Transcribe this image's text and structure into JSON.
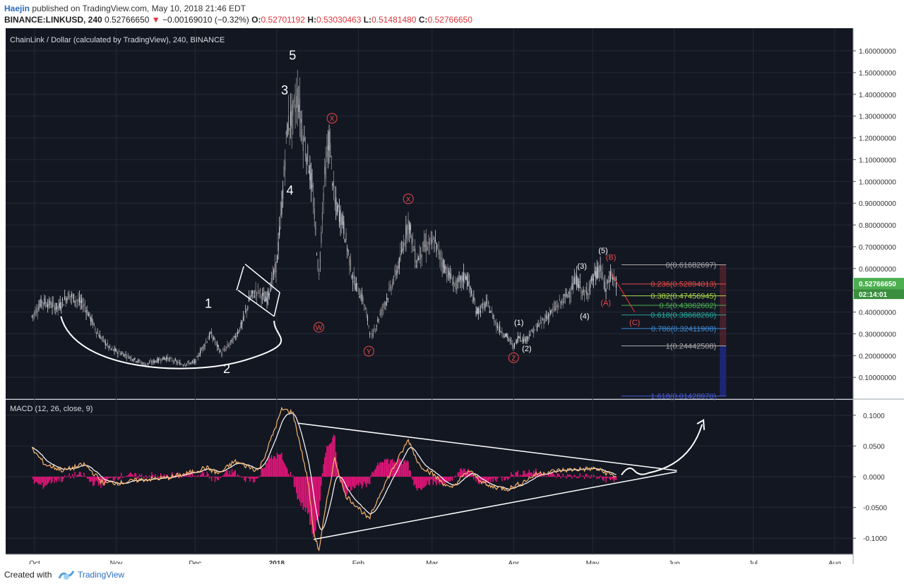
{
  "header": {
    "author": "Haejin",
    "published": " published on TradingView.com, May 10, 2018 21:46 EDT",
    "symbol": "BINANCE:LINKUSD, 240",
    "last": "0.52766650",
    "change_arrow": "▼",
    "change": "−0.00169010 (−0.32%)",
    "o_label": "O:",
    "o_value": "0.52701192",
    "h_label": "H:",
    "h_value": "0.53030463",
    "l_label": "L:",
    "l_value": "0.51481480",
    "c_label": "C:",
    "c_value": "0.52766650"
  },
  "footer": {
    "created": "Created with",
    "brand": "TradingView"
  },
  "colors": {
    "background": "#131722",
    "axis_bg": "#ffffff",
    "candle_up": "#d1d4dc",
    "candle_down": "#8f8f8f",
    "drawing": "#ffffff",
    "wave_red": "#e84a4a",
    "macd_line": "#f5b26b",
    "signal_line": "#ffffff",
    "histogram": "#e7157b",
    "price_badge": "#4caf50"
  },
  "chart_data": [
    {
      "type": "candlestick",
      "title": "ChainLink / Dollar (calculated by TradingView), 240, BINANCE",
      "x_ticks": [
        "Oct",
        "Nov",
        "Dec",
        "2018",
        "Feb",
        "Mar",
        "Apr",
        "May",
        "Jun",
        "Jul",
        "Aug"
      ],
      "y_ticks": [
        "0.10000000",
        "0.20000000",
        "0.30000000",
        "0.40000000",
        "0.50000000",
        "0.60000000",
        "0.70000000",
        "0.80000000",
        "0.90000000",
        "1.00000000",
        "1.10000000",
        "1.20000000",
        "1.30000000",
        "1.40000000",
        "1.50000000",
        "1.60000000"
      ],
      "y_range": [
        0.0,
        1.6
      ],
      "last_price": "0.52766650",
      "countdown": "02:14:01",
      "price_path_approx": [
        [
          "2017-09-30",
          0.38
        ],
        [
          "2017-10-04",
          0.45
        ],
        [
          "2017-10-10",
          0.42
        ],
        [
          "2017-10-14",
          0.48
        ],
        [
          "2017-10-20",
          0.43
        ],
        [
          "2017-10-25",
          0.3
        ],
        [
          "2017-10-30",
          0.23
        ],
        [
          "2017-11-05",
          0.2
        ],
        [
          "2017-11-12",
          0.16
        ],
        [
          "2017-11-20",
          0.19
        ],
        [
          "2017-11-26",
          0.16
        ],
        [
          "2017-12-01",
          0.17
        ],
        [
          "2017-12-04",
          0.24
        ],
        [
          "2017-12-07",
          0.3
        ],
        [
          "2017-12-11",
          0.21
        ],
        [
          "2017-12-16",
          0.28
        ],
        [
          "2017-12-19",
          0.35
        ],
        [
          "2017-12-22",
          0.47
        ],
        [
          "2017-12-25",
          0.5
        ],
        [
          "2017-12-28",
          0.45
        ],
        [
          "2018-01-01",
          0.62
        ],
        [
          "2018-01-03",
          0.9
        ],
        [
          "2018-01-05",
          1.25
        ],
        [
          "2018-01-07",
          1.3
        ],
        [
          "2018-01-09",
          1.4
        ],
        [
          "2018-01-11",
          1.2
        ],
        [
          "2018-01-13",
          1.1
        ],
        [
          "2018-01-15",
          0.9
        ],
        [
          "2018-01-17",
          0.55
        ],
        [
          "2018-01-19",
          1.0
        ],
        [
          "2018-01-21",
          1.2
        ],
        [
          "2018-01-23",
          0.9
        ],
        [
          "2018-01-26",
          0.82
        ],
        [
          "2018-01-30",
          0.55
        ],
        [
          "2018-02-03",
          0.45
        ],
        [
          "2018-02-06",
          0.28
        ],
        [
          "2018-02-09",
          0.38
        ],
        [
          "2018-02-13",
          0.5
        ],
        [
          "2018-02-17",
          0.64
        ],
        [
          "2018-02-20",
          0.82
        ],
        [
          "2018-02-23",
          0.63
        ],
        [
          "2018-02-26",
          0.7
        ],
        [
          "2018-03-02",
          0.72
        ],
        [
          "2018-03-06",
          0.6
        ],
        [
          "2018-03-10",
          0.52
        ],
        [
          "2018-03-14",
          0.57
        ],
        [
          "2018-03-18",
          0.4
        ],
        [
          "2018-03-22",
          0.44
        ],
        [
          "2018-03-26",
          0.33
        ],
        [
          "2018-03-30",
          0.28
        ],
        [
          "2018-04-01",
          0.24
        ],
        [
          "2018-04-03",
          0.29
        ],
        [
          "2018-04-05",
          0.27
        ],
        [
          "2018-04-09",
          0.32
        ],
        [
          "2018-04-13",
          0.37
        ],
        [
          "2018-04-17",
          0.42
        ],
        [
          "2018-04-21",
          0.47
        ],
        [
          "2018-04-25",
          0.55
        ],
        [
          "2018-04-28",
          0.47
        ],
        [
          "2018-05-01",
          0.55
        ],
        [
          "2018-05-04",
          0.6
        ],
        [
          "2018-05-06",
          0.5
        ],
        [
          "2018-05-08",
          0.58
        ],
        [
          "2018-05-10",
          0.53
        ]
      ],
      "fibonacci": [
        {
          "ratio": "0",
          "price": "0.61682697",
          "value": 0.61682697,
          "color": "#aaaaaa"
        },
        {
          "ratio": "0.236",
          "price": "0.52894013",
          "value": 0.52894013,
          "color": "#e84a4a"
        },
        {
          "ratio": "0.382",
          "price": "0.47456945",
          "value": 0.47456945,
          "color": "#a8d64a"
        },
        {
          "ratio": "0.5",
          "price": "0.43062602",
          "value": 0.43062602,
          "color": "#4caf50"
        },
        {
          "ratio": "0.618",
          "price": "0.38668260",
          "value": 0.3866826,
          "color": "#26a69a"
        },
        {
          "ratio": "0.786",
          "price": "0.32411908",
          "value": 0.32411908,
          "color": "#3d8bd4"
        },
        {
          "ratio": "1",
          "price": "0.24442508",
          "value": 0.24442508,
          "color": "#aaaaaa"
        },
        {
          "ratio": "1.618",
          "price": "0.01428970",
          "value": 0.0142897,
          "color": "#4a5bd6"
        }
      ],
      "wave_labels": {
        "impulse": [
          {
            "text": "1",
            "date": "2017-12-06",
            "price": 0.42
          },
          {
            "text": "2",
            "date": "2017-12-13",
            "price": 0.12
          },
          {
            "text": "3",
            "date": "2018-01-04",
            "price": 1.4
          },
          {
            "text": "4",
            "date": "2018-01-06",
            "price": 0.94
          },
          {
            "text": "5",
            "date": "2018-01-07",
            "price": 1.56
          }
        ],
        "correction": [
          {
            "text": "W",
            "date": "2018-01-17",
            "price": 0.33
          },
          {
            "text": "X",
            "date": "2018-01-22",
            "price": 1.29
          },
          {
            "text": "Y",
            "date": "2018-02-05",
            "price": 0.22
          },
          {
            "text": "X",
            "date": "2018-02-20",
            "price": 0.92
          },
          {
            "text": "Z",
            "date": "2018-04-01",
            "price": 0.19
          }
        ],
        "new_impulse": [
          {
            "text": "(1)",
            "date": "2018-04-03",
            "price": 0.34
          },
          {
            "text": "(2)",
            "date": "2018-04-06",
            "price": 0.22
          },
          {
            "text": "(3)",
            "date": "2018-04-27",
            "price": 0.6
          },
          {
            "text": "(4)",
            "date": "2018-04-28",
            "price": 0.37
          },
          {
            "text": "(5)",
            "date": "2018-05-05",
            "price": 0.67
          }
        ],
        "abc": [
          {
            "text": "(A)",
            "date": "2018-05-06",
            "price": 0.43
          },
          {
            "text": "(B)",
            "date": "2018-05-08",
            "price": 0.64
          },
          {
            "text": "(C)",
            "date": "2018-05-17",
            "price": 0.34
          }
        ]
      }
    },
    {
      "type": "line",
      "title": "MACD (12, 26, close, 9)",
      "y_ticks": [
        "0.1000",
        "0.0500",
        "0.0000",
        "-0.0500",
        "-0.1000"
      ],
      "y_range": [
        -0.125,
        0.125
      ],
      "macd_path_approx": [
        [
          "2017-09-30",
          0.045
        ],
        [
          "2017-10-05",
          0.02
        ],
        [
          "2017-10-12",
          0.01
        ],
        [
          "2017-10-20",
          0.02
        ],
        [
          "2017-10-27",
          -0.01
        ],
        [
          "2017-11-03",
          -0.01
        ],
        [
          "2017-11-10",
          -0.005
        ],
        [
          "2017-11-20",
          -0.002
        ],
        [
          "2017-11-28",
          0.005
        ],
        [
          "2017-12-05",
          0.015
        ],
        [
          "2017-12-10",
          0.005
        ],
        [
          "2017-12-16",
          0.025
        ],
        [
          "2017-12-20",
          0.018
        ],
        [
          "2017-12-25",
          0.01
        ],
        [
          "2017-12-28",
          0.04
        ],
        [
          "2018-01-03",
          0.11
        ],
        [
          "2018-01-07",
          0.105
        ],
        [
          "2018-01-10",
          0.05
        ],
        [
          "2018-01-13",
          -0.01
        ],
        [
          "2018-01-15",
          -0.09
        ],
        [
          "2018-01-17",
          -0.12
        ],
        [
          "2018-01-20",
          -0.04
        ],
        [
          "2018-01-23",
          0.03
        ],
        [
          "2018-01-27",
          -0.03
        ],
        [
          "2018-02-01",
          -0.05
        ],
        [
          "2018-02-05",
          -0.07
        ],
        [
          "2018-02-10",
          -0.02
        ],
        [
          "2018-02-15",
          0.02
        ],
        [
          "2018-02-20",
          0.06
        ],
        [
          "2018-02-24",
          0.02
        ],
        [
          "2018-03-01",
          0.005
        ],
        [
          "2018-03-08",
          -0.02
        ],
        [
          "2018-03-15",
          0.01
        ],
        [
          "2018-03-22",
          -0.015
        ],
        [
          "2018-03-30",
          -0.02
        ],
        [
          "2018-04-04",
          -0.01
        ],
        [
          "2018-04-10",
          0.005
        ],
        [
          "2018-04-18",
          0.01
        ],
        [
          "2018-04-25",
          0.012
        ],
        [
          "2018-05-02",
          0.013
        ],
        [
          "2018-05-07",
          0.005
        ],
        [
          "2018-05-10",
          0.0
        ]
      ]
    }
  ]
}
